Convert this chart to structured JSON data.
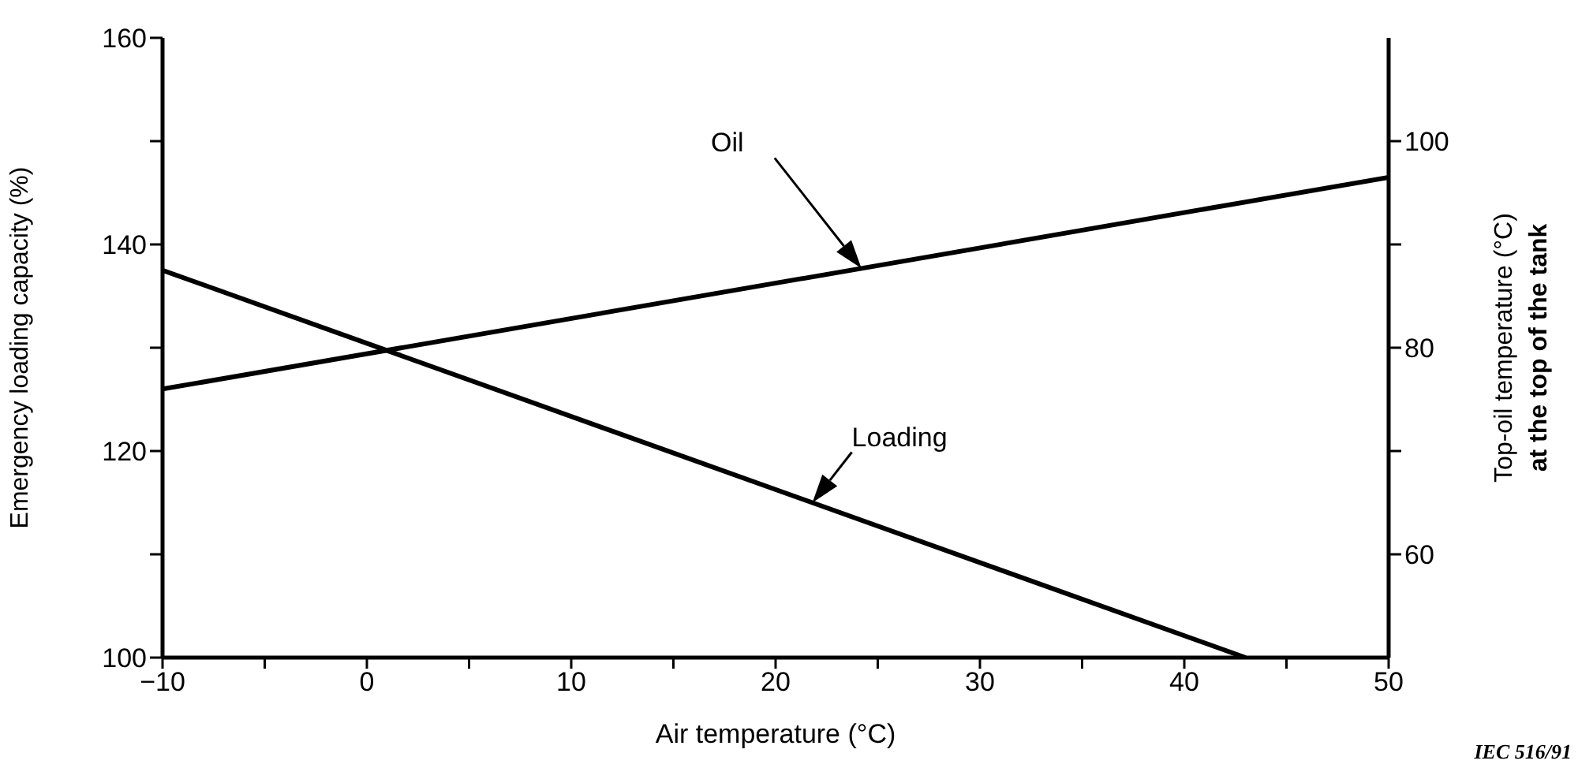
{
  "chart_data": {
    "type": "line",
    "xlabel": "Air temperature (°C)",
    "ylabel": "Emergency loading capacity (%)",
    "y2label": "Top-oil temperature (°C)\nat the top of the tank",
    "xlim": [
      -10,
      50
    ],
    "xticks": [
      {
        "value": -10,
        "label": "−10"
      },
      {
        "value": -5,
        "label": null
      },
      0,
      {
        "value": 5,
        "label": null
      },
      10,
      {
        "value": 15,
        "label": null
      },
      20,
      {
        "value": 25,
        "label": null
      },
      30,
      {
        "value": 35,
        "label": null
      },
      40,
      {
        "value": 45,
        "label": null
      },
      50
    ],
    "ylim": [
      100,
      160
    ],
    "yticks": [
      100,
      {
        "value": 110,
        "label": null
      },
      120,
      {
        "value": 130,
        "label": null
      },
      140,
      {
        "value": 150,
        "label": null
      },
      160
    ],
    "y2lim": [
      50,
      110
    ],
    "y2ticks": [
      60,
      {
        "value": 70,
        "label": null
      },
      80,
      {
        "value": 90,
        "label": null
      },
      100
    ],
    "series": [
      {
        "name": "Oil",
        "color": "#000000",
        "axis": "y2",
        "x": [
          -10,
          50
        ],
        "values": [
          76,
          96.5
        ]
      },
      {
        "name": "Loading",
        "color": "#000000",
        "x": [
          -10,
          43
        ],
        "values": [
          137.5,
          100
        ]
      }
    ],
    "annotations": [
      "IEC 516/91"
    ],
    "grid": false,
    "legend": false,
    "marker": "none",
    "line_style": "solid"
  }
}
